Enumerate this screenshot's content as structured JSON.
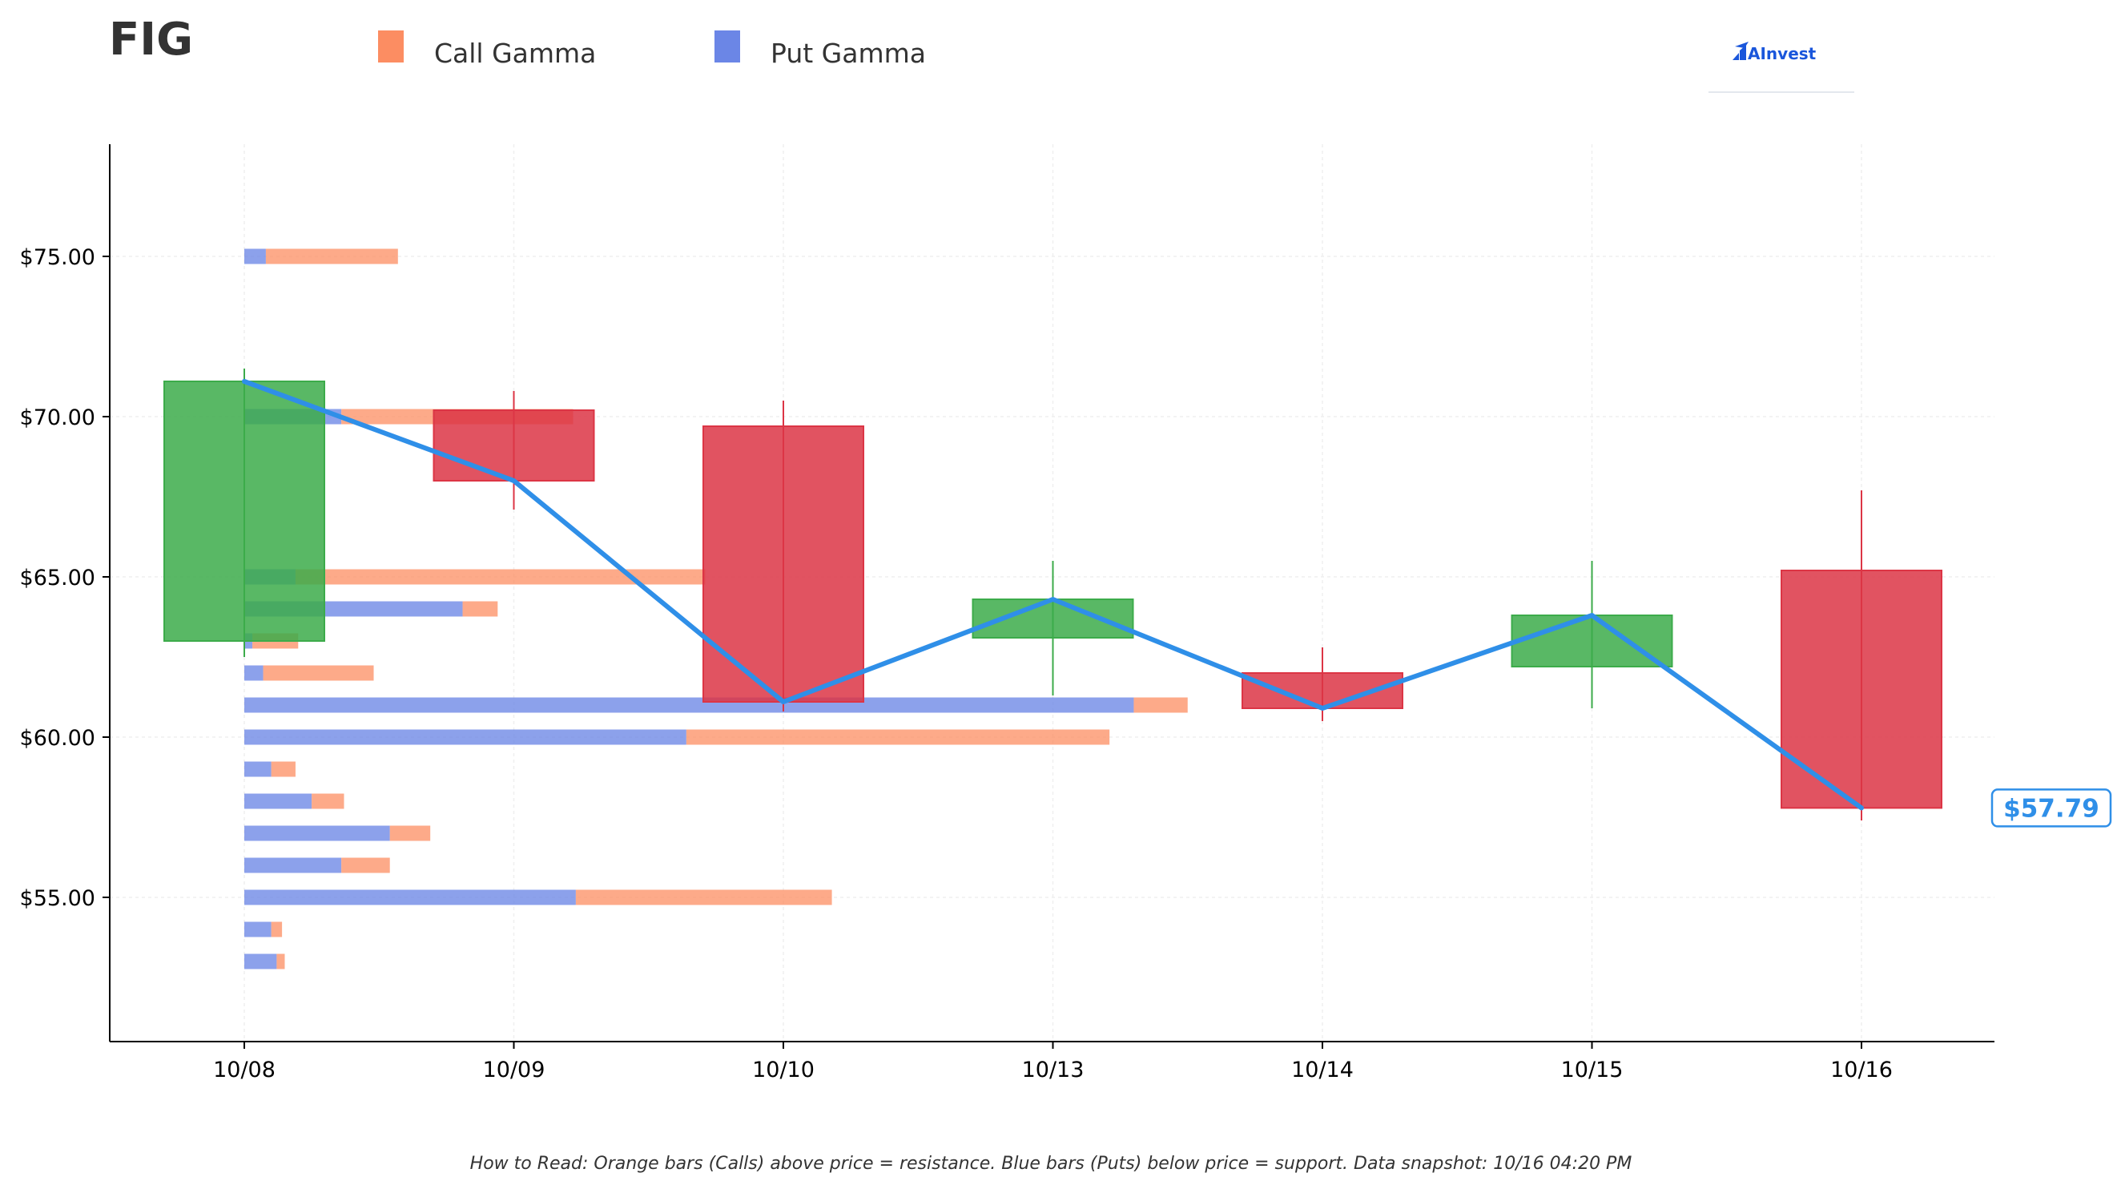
{
  "title": "FIG",
  "legend": [
    {
      "label": "Call Gamma",
      "color": "#fc8d62"
    },
    {
      "label": "Put Gamma",
      "color": "#6b86e6"
    }
  ],
  "brand": {
    "text": "AInvest",
    "color": "#1a56db"
  },
  "price_label": {
    "text": "$57.79",
    "color": "#2f8fe8"
  },
  "footnote": "How to Read: Orange bars (Calls) above price = resistance. Blue bars (Puts) below price = support. Data snapshot: 10/16 04:20 PM",
  "colors": {
    "up": "#3cab4a",
    "down": "#dc3545",
    "call": "#fc8d62",
    "put": "#6b86e6",
    "line": "#2f8fe8"
  },
  "chart_data": {
    "type": "candlestick",
    "categories": [
      "10/08",
      "10/09",
      "10/10",
      "10/13",
      "10/14",
      "10/15",
      "10/16"
    ],
    "ylim": [
      50.5,
      78.5
    ],
    "yticks": [
      55,
      60,
      65,
      70,
      75
    ],
    "ytick_labels": [
      "$55.00",
      "$60.00",
      "$65.00",
      "$70.00",
      "$75.00"
    ],
    "grid": true,
    "candles": [
      {
        "date": "10/08",
        "open": 63.0,
        "high": 71.5,
        "low": 62.5,
        "close": 71.1
      },
      {
        "date": "10/09",
        "open": 70.2,
        "high": 70.8,
        "low": 67.1,
        "close": 68.0
      },
      {
        "date": "10/10",
        "open": 69.7,
        "high": 70.5,
        "low": 60.8,
        "close": 61.1
      },
      {
        "date": "10/13",
        "open": 63.1,
        "high": 65.5,
        "low": 61.3,
        "close": 64.3
      },
      {
        "date": "10/14",
        "open": 62.0,
        "high": 62.8,
        "low": 60.5,
        "close": 60.9
      },
      {
        "date": "10/15",
        "open": 62.2,
        "high": 65.5,
        "low": 60.9,
        "close": 63.8
      },
      {
        "date": "10/16",
        "open": 65.2,
        "high": 67.7,
        "low": 57.4,
        "close": 57.79
      }
    ],
    "close_line": [
      71.1,
      68.0,
      61.1,
      64.3,
      60.9,
      63.8,
      57.79
    ],
    "gamma_unit": "index positions",
    "gamma_bars": [
      {
        "strike": 75.0,
        "put": 0.08,
        "call": 0.49
      },
      {
        "strike": 70.0,
        "put": 0.36,
        "call": 0.86
      },
      {
        "strike": 65.0,
        "put": 0.19,
        "call": 1.52
      },
      {
        "strike": 64.0,
        "put": 0.81,
        "call": 0.13
      },
      {
        "strike": 63.0,
        "put": 0.03,
        "call": 0.17
      },
      {
        "strike": 62.0,
        "put": 0.07,
        "call": 0.41
      },
      {
        "strike": 61.0,
        "put": 3.3,
        "call": 0.2
      },
      {
        "strike": 60.0,
        "put": 1.64,
        "call": 1.57
      },
      {
        "strike": 59.0,
        "put": 0.1,
        "call": 0.09
      },
      {
        "strike": 58.0,
        "put": 0.25,
        "call": 0.12
      },
      {
        "strike": 57.0,
        "put": 0.54,
        "call": 0.15
      },
      {
        "strike": 56.0,
        "put": 0.36,
        "call": 0.18
      },
      {
        "strike": 55.0,
        "put": 1.23,
        "call": 0.95
      },
      {
        "strike": 54.0,
        "put": 0.1,
        "call": 0.04
      },
      {
        "strike": 53.0,
        "put": 0.12,
        "call": 0.03
      }
    ]
  }
}
